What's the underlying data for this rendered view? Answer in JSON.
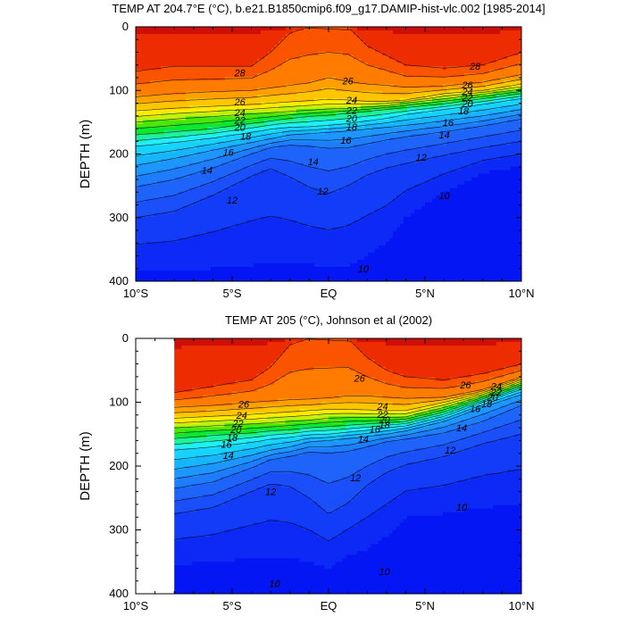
{
  "chart_data": [
    {
      "type": "contour",
      "title": "TEMP AT 204.7°E (°C), b.e21.B1850cmip6.f09_g17.DAMIP-hist-vlc.002 [1985-2014]",
      "ylabel": "DEPTH (m)",
      "xlabel": "",
      "x_ticks": [
        {
          "value": -10,
          "label": "10°S"
        },
        {
          "value": -5,
          "label": "5°S"
        },
        {
          "value": 0,
          "label": "EQ"
        },
        {
          "value": 5,
          "label": "5°N"
        },
        {
          "value": 10,
          "label": "10°N"
        }
      ],
      "y_ticks": [
        0,
        100,
        200,
        300,
        400
      ],
      "xlim": [
        -10,
        10
      ],
      "ylim": [
        0,
        400
      ],
      "y_inverted": true,
      "data_xrange": [
        -10,
        10
      ],
      "contour_levels": [
        9,
        10,
        11,
        12,
        13,
        14,
        15,
        16,
        17,
        18,
        19,
        20,
        21,
        22,
        23,
        24,
        25,
        26,
        27,
        28,
        29
      ],
      "isotherm_depths": {
        "x": [
          -10,
          -8,
          -6,
          -4,
          -3,
          -2,
          -1,
          0,
          1,
          2,
          3,
          4,
          6,
          8,
          10
        ],
        "levels": {
          "28": [
            70,
            62,
            62,
            62,
            40,
            10,
            0,
            0,
            0,
            30,
            45,
            60,
            65,
            60,
            40
          ],
          "26": [
            110,
            105,
            102,
            100,
            96,
            92,
            88,
            80,
            86,
            90,
            92,
            95,
            93,
            87,
            75
          ],
          "24": [
            132,
            128,
            125,
            122,
            120,
            118,
            116,
            114,
            115,
            117,
            117,
            115,
            105,
            100,
            90
          ],
          "22": [
            150,
            145,
            141,
            137,
            135,
            133,
            131,
            129,
            128,
            126,
            124,
            120,
            113,
            106,
            98
          ],
          "20": [
            170,
            165,
            160,
            152,
            148,
            144,
            141,
            139,
            136,
            133,
            130,
            127,
            121,
            113,
            105
          ],
          "18": [
            188,
            182,
            175,
            166,
            161,
            158,
            157,
            155,
            152,
            148,
            144,
            138,
            130,
            122,
            113
          ],
          "16": [
            218,
            207,
            194,
            182,
            176,
            170,
            168,
            166,
            164,
            161,
            158,
            155,
            148,
            140,
            130
          ],
          "14": [
            252,
            240,
            222,
            200,
            190,
            186,
            188,
            191,
            190,
            184,
            178,
            173,
            165,
            156,
            145
          ],
          "12": [
            300,
            290,
            265,
            235,
            223,
            236,
            252,
            262,
            250,
            233,
            222,
            215,
            202,
            190,
            180
          ],
          "10": [
            385,
            383,
            380,
            375,
            372,
            372,
            374,
            377,
            375,
            360,
            340,
            300,
            260,
            230,
            220
          ]
        }
      },
      "labels": [
        {
          "x": -4.6,
          "y": 72,
          "text": "28"
        },
        {
          "x": 7.6,
          "y": 62,
          "text": "28"
        },
        {
          "x": 1.0,
          "y": 85,
          "text": "26"
        },
        {
          "x": -4.6,
          "y": 118,
          "text": "26"
        },
        {
          "x": 7.2,
          "y": 91,
          "text": "26"
        },
        {
          "x": 1.2,
          "y": 115,
          "text": "24"
        },
        {
          "x": -4.6,
          "y": 135,
          "text": "24"
        },
        {
          "x": 7.2,
          "y": 102,
          "text": "24"
        },
        {
          "x": 1.2,
          "y": 131,
          "text": "22"
        },
        {
          "x": -4.6,
          "y": 147,
          "text": "22"
        },
        {
          "x": 7.2,
          "y": 111,
          "text": "22"
        },
        {
          "x": 1.2,
          "y": 144,
          "text": "20"
        },
        {
          "x": -4.6,
          "y": 158,
          "text": "20"
        },
        {
          "x": 7.2,
          "y": 121,
          "text": "20"
        },
        {
          "x": 1.2,
          "y": 157,
          "text": "18"
        },
        {
          "x": -4.3,
          "y": 172,
          "text": "18"
        },
        {
          "x": 7.0,
          "y": 132,
          "text": "18"
        },
        {
          "x": 0.9,
          "y": 178,
          "text": "16"
        },
        {
          "x": -5.2,
          "y": 197,
          "text": "16"
        },
        {
          "x": 6.2,
          "y": 150,
          "text": "16"
        },
        {
          "x": -0.8,
          "y": 212,
          "text": "14"
        },
        {
          "x": -6.3,
          "y": 225,
          "text": "14"
        },
        {
          "x": 6.0,
          "y": 170,
          "text": "14"
        },
        {
          "x": -0.3,
          "y": 258,
          "text": "12"
        },
        {
          "x": -5.0,
          "y": 272,
          "text": "12"
        },
        {
          "x": 4.8,
          "y": 205,
          "text": "12"
        },
        {
          "x": 6.0,
          "y": 265,
          "text": "10"
        },
        {
          "x": 1.8,
          "y": 380,
          "text": "10"
        }
      ]
    },
    {
      "type": "contour",
      "title": "TEMP AT 205 (°C), Johnson et al (2002)",
      "ylabel": "DEPTH (m)",
      "xlabel": "",
      "x_ticks": [
        {
          "value": -10,
          "label": "10°S"
        },
        {
          "value": -5,
          "label": "5°S"
        },
        {
          "value": 0,
          "label": "EQ"
        },
        {
          "value": 5,
          "label": "5°N"
        },
        {
          "value": 10,
          "label": "10°N"
        }
      ],
      "y_ticks": [
        0,
        100,
        200,
        300,
        400
      ],
      "xlim": [
        -10,
        10
      ],
      "ylim": [
        0,
        400
      ],
      "y_inverted": true,
      "data_xrange": [
        -8,
        10
      ],
      "contour_levels": [
        9,
        10,
        11,
        12,
        13,
        14,
        15,
        16,
        17,
        18,
        19,
        20,
        21,
        22,
        23,
        24,
        25,
        26,
        27,
        28,
        29
      ],
      "isotherm_depths": {
        "x": [
          -8,
          -6,
          -4,
          -3,
          -2,
          -1,
          0,
          1,
          2,
          3,
          4,
          6,
          8,
          10
        ],
        "levels": {
          "28": [
            85,
            75,
            65,
            45,
            10,
            0,
            0,
            0,
            30,
            50,
            60,
            65,
            55,
            40
          ],
          "26": [
            108,
            105,
            100,
            98,
            96,
            95,
            93,
            90,
            90,
            92,
            94,
            92,
            80,
            60
          ],
          "24": [
            125,
            122,
            119,
            117,
            115,
            113,
            111,
            111,
            112,
            113,
            113,
            100,
            85,
            65
          ],
          "22": [
            140,
            137,
            134,
            132,
            130,
            128,
            125,
            124,
            124,
            124,
            123,
            108,
            90,
            70
          ],
          "20": [
            157,
            152,
            148,
            145,
            143,
            140,
            138,
            136,
            134,
            132,
            130,
            115,
            95,
            75
          ],
          "18": [
            175,
            170,
            163,
            158,
            155,
            151,
            150,
            147,
            144,
            140,
            137,
            122,
            100,
            80
          ],
          "16": [
            205,
            196,
            183,
            175,
            170,
            162,
            160,
            157,
            154,
            150,
            145,
            130,
            108,
            88
          ],
          "14": [
            235,
            225,
            203,
            190,
            185,
            178,
            180,
            177,
            170,
            162,
            158,
            148,
            130,
            105
          ],
          "12": [
            275,
            265,
            240,
            228,
            232,
            250,
            275,
            258,
            230,
            210,
            198,
            185,
            165,
            150
          ],
          "10": [
            355,
            350,
            345,
            342,
            345,
            350,
            360,
            340,
            330,
            310,
            280,
            275,
            265,
            260
          ]
        }
      },
      "labels": [
        {
          "x": 1.6,
          "y": 62,
          "text": "26"
        },
        {
          "x": -4.4,
          "y": 103,
          "text": "26"
        },
        {
          "x": 7.1,
          "y": 73,
          "text": "26"
        },
        {
          "x": 2.8,
          "y": 106,
          "text": "24"
        },
        {
          "x": -4.5,
          "y": 120,
          "text": "24"
        },
        {
          "x": 8.7,
          "y": 75,
          "text": "24"
        },
        {
          "x": 2.8,
          "y": 119,
          "text": "22"
        },
        {
          "x": -4.7,
          "y": 133,
          "text": "22"
        },
        {
          "x": 8.7,
          "y": 84,
          "text": "22"
        },
        {
          "x": 2.9,
          "y": 127,
          "text": "20"
        },
        {
          "x": -4.8,
          "y": 143,
          "text": "20"
        },
        {
          "x": 8.5,
          "y": 92,
          "text": "20"
        },
        {
          "x": 2.9,
          "y": 135,
          "text": "18"
        },
        {
          "x": -5.0,
          "y": 155,
          "text": "18"
        },
        {
          "x": 8.2,
          "y": 102,
          "text": "18"
        },
        {
          "x": 2.4,
          "y": 142,
          "text": "16"
        },
        {
          "x": -5.3,
          "y": 166,
          "text": "16"
        },
        {
          "x": 7.6,
          "y": 110,
          "text": "16"
        },
        {
          "x": 1.8,
          "y": 157,
          "text": "14"
        },
        {
          "x": -5.2,
          "y": 183,
          "text": "14"
        },
        {
          "x": 6.9,
          "y": 140,
          "text": "14"
        },
        {
          "x": 1.4,
          "y": 218,
          "text": "12"
        },
        {
          "x": -3.0,
          "y": 240,
          "text": "12"
        },
        {
          "x": 6.3,
          "y": 175,
          "text": "12"
        },
        {
          "x": 6.9,
          "y": 264,
          "text": "10"
        },
        {
          "x": 2.9,
          "y": 365,
          "text": "10"
        },
        {
          "x": -2.8,
          "y": 384,
          "text": "10"
        }
      ]
    }
  ]
}
